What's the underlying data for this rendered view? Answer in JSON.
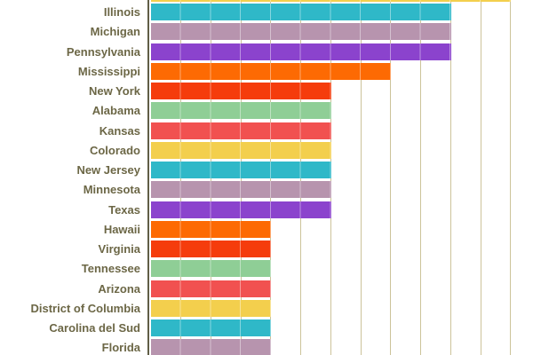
{
  "chart_data": {
    "type": "bar",
    "orientation": "horizontal",
    "title": "",
    "xlabel": "",
    "ylabel": "",
    "categories": [
      "Illinois",
      "Michigan",
      "Pennsylvania",
      "Mississippi",
      "New York",
      "Alabama",
      "Kansas",
      "Colorado",
      "New Jersey",
      "Minnesota",
      "Texas",
      "Hawaii",
      "Virginia",
      "Tennessee",
      "Arizona",
      "District of Columbia",
      "Carolina del Sud",
      "Florida"
    ],
    "values": [
      10,
      10,
      10,
      8,
      6,
      6,
      6,
      6,
      6,
      6,
      6,
      4,
      4,
      4,
      4,
      4,
      4,
      4
    ],
    "bar_colors": [
      "#2fb8c8",
      "#b794ae",
      "#8b43cd",
      "#fd6a03",
      "#f53c0c",
      "#8fce96",
      "#f15150",
      "#f3cf4d",
      "#2fb8c8",
      "#b794ae",
      "#8b43cd",
      "#fd6a03",
      "#f53c0c",
      "#8fce96",
      "#f15150",
      "#f3cf4d",
      "#2fb8c8",
      "#b794ae"
    ],
    "cropped_top_bar": {
      "value": 12,
      "color": "#f3cf4d",
      "label": ""
    },
    "x_axis": {
      "tick_interval": 1,
      "gridline_count": 12,
      "tick_labels_visible": false
    },
    "xlim": [
      0,
      12
    ],
    "grid": true,
    "legend": false,
    "crop_note": "View is cropped: only the bottom sliver of the topmost (12-unit, yellow) bar is visible; axis tick labels and title are outside the visible area."
  },
  "style": {
    "background_color": "#ffffff",
    "gridline_color": "#ccc39a",
    "axis_line_color": "#615e47",
    "label_color": "#6c6746"
  }
}
